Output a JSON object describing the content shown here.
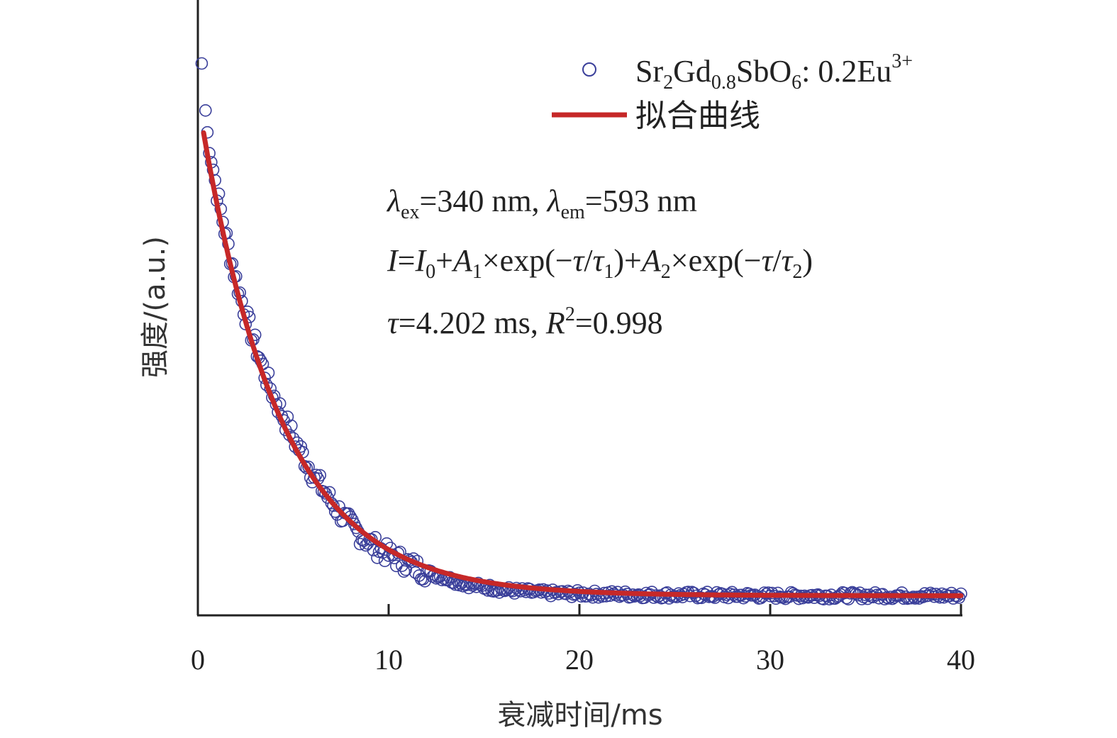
{
  "chart_data": {
    "type": "scatter",
    "xlabel": "衰减时间/ms",
    "ylabel": "强度/(a.u.)",
    "xlim": [
      0,
      40
    ],
    "ylim": [
      0,
      1.0
    ],
    "x_ticks": [
      "0",
      "10",
      "20",
      "30",
      "40"
    ],
    "grid": false,
    "legend_position": "top-right",
    "series": [
      {
        "name": "Sr2Gd0.8SbO6: 0.2Eu3+",
        "kind": "scatter",
        "marker": "open-circle",
        "color": "#3a3f9a",
        "model": "single-exponential decay with baseline; I(0)≈0.94, baseline≈0.03, tau≈4.2 ms, sampled every 0.1 ms from 0 to 40 ms",
        "x": [
          0.2,
          0.5,
          1.0,
          1.5,
          2.0,
          2.5,
          3.0,
          3.5,
          4.0,
          5.0,
          6.0,
          7.0,
          8.0,
          9.0,
          10.0,
          12.0,
          14.0,
          16.0,
          18.0,
          20.0,
          25.0,
          30.0,
          35.0,
          40.0
        ],
        "y": [
          0.94,
          0.82,
          0.72,
          0.64,
          0.57,
          0.51,
          0.46,
          0.41,
          0.37,
          0.3,
          0.24,
          0.19,
          0.15,
          0.12,
          0.1,
          0.07,
          0.05,
          0.04,
          0.035,
          0.033,
          0.031,
          0.03,
          0.03,
          0.03
        ]
      },
      {
        "name": "拟合曲线",
        "kind": "line",
        "color": "#c62828",
        "fit": {
          "y0": 0.03,
          "a": 0.85,
          "tau": 4.202,
          "x_start": 0.3,
          "x_end": 40
        }
      }
    ],
    "legend": {
      "series1_base": "Sr",
      "series1_sub1": "2",
      "series1_mid": "Gd",
      "series1_sub2": "0.8",
      "series1_mid2": "SbO",
      "series1_sub3": "6",
      "series1_tail": ": 0.2Eu",
      "series1_sup": "3+",
      "series2": "拟合曲线"
    },
    "annotations": {
      "line1": {
        "lambda": "λ",
        "ex": "ex",
        "eq1": "=340 nm, ",
        "em": "em",
        "eq2": "=593 nm"
      },
      "line2": {
        "I": "I",
        "eq": "=",
        "I0": "I",
        "sub0": "0",
        "plusA1": "+",
        "A1": "A",
        "sub1": "1",
        "exp1": "×exp(−",
        "tau": "τ",
        "slash": "/",
        "tau1": "τ",
        "sub_t1": "1",
        "close1": ")+",
        "A2": "A",
        "sub2": "2",
        "exp2": "×exp(−",
        "tau_b": "τ",
        "slash_b": "/",
        "tau2": "τ",
        "sub_t2": "2",
        "close2": ")"
      },
      "line3": {
        "tau": "τ",
        "val": "=4.202 ms, ",
        "R": "R",
        "sup": "2",
        "rval": "=0.998"
      }
    }
  }
}
